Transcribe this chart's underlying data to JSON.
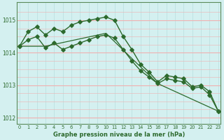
{
  "line1_x": [
    0,
    1,
    2,
    3,
    4,
    5,
    6,
    7,
    8,
    9,
    10,
    11,
    12,
    13,
    14,
    15,
    16,
    17,
    18,
    19,
    20,
    21,
    22,
    23
  ],
  "line1_y": [
    1014.2,
    1014.65,
    1014.8,
    1014.55,
    1014.75,
    1014.65,
    1014.85,
    1014.95,
    1015.0,
    1015.05,
    1015.1,
    1015.0,
    1014.5,
    1014.1,
    1013.65,
    1013.4,
    1013.1,
    1013.3,
    1013.25,
    1013.2,
    1012.95,
    1013.0,
    1012.8,
    1012.2
  ],
  "line2_x": [
    0,
    1,
    2,
    3,
    4,
    5,
    6,
    7,
    8,
    9,
    10,
    11,
    12,
    13,
    14,
    15,
    16,
    17,
    18,
    19,
    20,
    21,
    22,
    23
  ],
  "line2_y": [
    1014.2,
    1014.4,
    1014.5,
    1014.15,
    1014.3,
    1014.1,
    1014.2,
    1014.3,
    1014.4,
    1014.5,
    1014.55,
    1014.45,
    1014.1,
    1013.75,
    1013.45,
    1013.25,
    1013.05,
    1013.2,
    1013.15,
    1013.1,
    1012.9,
    1012.95,
    1012.7,
    1012.2
  ],
  "line3_x": [
    0,
    3,
    10,
    16,
    23
  ],
  "line3_y": [
    1014.2,
    1014.2,
    1014.6,
    1013.05,
    1012.2
  ],
  "line_color": "#2d6a2d",
  "bg_color": "#d4f0f0",
  "grid_color_h": "#f0b0b0",
  "grid_color_v": "#b8dede",
  "xlabel": "Graphe pression niveau de la mer (hPa)",
  "ylim": [
    1011.8,
    1015.55
  ],
  "xlim": [
    -0.3,
    23.3
  ],
  "yticks": [
    1012,
    1013,
    1014,
    1015
  ],
  "xticks": [
    0,
    1,
    2,
    3,
    4,
    5,
    6,
    7,
    8,
    9,
    10,
    11,
    12,
    13,
    14,
    15,
    16,
    17,
    18,
    19,
    20,
    21,
    22,
    23
  ],
  "marker": "D",
  "markersize": 2.8,
  "linewidth": 1.0,
  "straight_linewidth": 0.9
}
